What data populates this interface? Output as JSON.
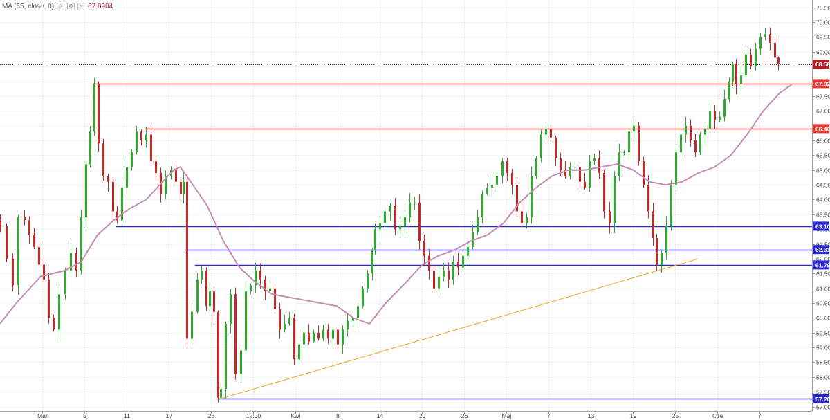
{
  "legend": {
    "study": "MA (55, close, 0)",
    "value": "67.8904"
  },
  "chart_data": {
    "type": "candlestick",
    "price_scale": {
      "ylim": [
        56.85,
        70.75
      ],
      "ticks": [
        "57.00",
        "57.50",
        "58.00",
        "58.50",
        "59.00",
        "59.50",
        "60.00",
        "60.50",
        "61.00",
        "61.50",
        "62.00",
        "62.50",
        "63.00",
        "63.50",
        "64.00",
        "64.50",
        "65.00",
        "65.50",
        "66.00",
        "66.50",
        "67.00",
        "67.50",
        "68.00",
        "68.50",
        "69.00",
        "69.50",
        "70.00",
        "70.50"
      ]
    },
    "time_labels": [
      "Mar",
      "5",
      "11",
      "17",
      "23",
      "12:00",
      "Kwi",
      "8",
      "14",
      "20",
      "26",
      "Maj",
      "7",
      "13",
      "19",
      "25",
      "Cze",
      "7"
    ],
    "current_price": {
      "label": "68.58",
      "value": 68.58,
      "color": "#b71c1c"
    },
    "horizontal_levels": [
      {
        "label": "67.92",
        "value": 67.92,
        "color": "#e53935",
        "x_start": 0.115
      },
      {
        "label": "66.40",
        "value": 66.4,
        "color": "#e53935",
        "x_start": 0.178
      },
      {
        "label": "63.10",
        "value": 63.1,
        "color": "#2a2ad0",
        "x_start": 0.143
      },
      {
        "label": "62.31",
        "value": 62.31,
        "color": "#2a2ad0",
        "x_start": 0.228
      },
      {
        "label": "61.79",
        "value": 61.79,
        "color": "#2a2ad0",
        "x_start": 0.24
      },
      {
        "label": "57.26",
        "value": 57.26,
        "color": "#2a2ad0",
        "x_start": 0.268
      }
    ],
    "trendline": {
      "color": "#f5a030",
      "from": {
        "x": 0.271,
        "y": 57.26
      },
      "to": {
        "x": 0.86,
        "y": 62.0
      }
    },
    "ma_color": "#c48bb3",
    "up_color": "#2eaa2e",
    "down_color": "#c62828",
    "close_path": [
      [
        0.0,
        63.1
      ],
      [
        0.008,
        62.0
      ],
      [
        0.015,
        61.1
      ],
      [
        0.022,
        63.4
      ],
      [
        0.03,
        63.3
      ],
      [
        0.036,
        62.8
      ],
      [
        0.042,
        62.4
      ],
      [
        0.048,
        61.8
      ],
      [
        0.054,
        61.3
      ],
      [
        0.06,
        60.0
      ],
      [
        0.066,
        59.6
      ],
      [
        0.072,
        60.8
      ],
      [
        0.08,
        61.6
      ],
      [
        0.087,
        62.2
      ],
      [
        0.094,
        61.6
      ],
      [
        0.1,
        63.4
      ],
      [
        0.106,
        65.2
      ],
      [
        0.111,
        66.3
      ],
      [
        0.116,
        67.9
      ],
      [
        0.121,
        65.9
      ],
      [
        0.127,
        64.8
      ],
      [
        0.133,
        64.6
      ],
      [
        0.139,
        63.6
      ],
      [
        0.144,
        63.3
      ],
      [
        0.15,
        64.4
      ],
      [
        0.156,
        65.1
      ],
      [
        0.162,
        65.6
      ],
      [
        0.168,
        66.3
      ],
      [
        0.174,
        66.0
      ],
      [
        0.18,
        66.2
      ],
      [
        0.186,
        65.3
      ],
      [
        0.192,
        64.9
      ],
      [
        0.198,
        64.2
      ],
      [
        0.204,
        64.8
      ],
      [
        0.21,
        65.0
      ],
      [
        0.216,
        64.6
      ],
      [
        0.222,
        64.2
      ],
      [
        0.226,
        64.6
      ],
      [
        0.23,
        59.3
      ],
      [
        0.236,
        60.2
      ],
      [
        0.243,
        61.3
      ],
      [
        0.248,
        61.6
      ],
      [
        0.254,
        60.4
      ],
      [
        0.258,
        60.9
      ],
      [
        0.263,
        60.2
      ],
      [
        0.268,
        57.3
      ],
      [
        0.272,
        57.6
      ],
      [
        0.278,
        59.8
      ],
      [
        0.284,
        60.8
      ],
      [
        0.29,
        58.1
      ],
      [
        0.296,
        58.9
      ],
      [
        0.302,
        60.9
      ],
      [
        0.308,
        61.1
      ],
      [
        0.314,
        61.6
      ],
      [
        0.32,
        61.3
      ],
      [
        0.326,
        60.9
      ],
      [
        0.332,
        61.0
      ],
      [
        0.338,
        60.3
      ],
      [
        0.344,
        59.6
      ],
      [
        0.35,
        59.8
      ],
      [
        0.356,
        60.0
      ],
      [
        0.362,
        58.6
      ],
      [
        0.368,
        59.1
      ],
      [
        0.374,
        59.5
      ],
      [
        0.38,
        59.2
      ],
      [
        0.386,
        59.5
      ],
      [
        0.392,
        59.3
      ],
      [
        0.398,
        59.6
      ],
      [
        0.404,
        59.3
      ],
      [
        0.41,
        59.6
      ],
      [
        0.416,
        59.1
      ],
      [
        0.422,
        59.6
      ],
      [
        0.428,
        59.9
      ],
      [
        0.434,
        60.0
      ],
      [
        0.44,
        60.4
      ],
      [
        0.446,
        61.0
      ],
      [
        0.452,
        61.5
      ],
      [
        0.458,
        62.3
      ],
      [
        0.462,
        63.0
      ],
      [
        0.468,
        63.2
      ],
      [
        0.474,
        63.6
      ],
      [
        0.48,
        63.8
      ],
      [
        0.486,
        63.0
      ],
      [
        0.492,
        63.1
      ],
      [
        0.498,
        63.4
      ],
      [
        0.504,
        63.9
      ],
      [
        0.51,
        63.9
      ],
      [
        0.516,
        62.6
      ],
      [
        0.522,
        62.1
      ],
      [
        0.528,
        61.6
      ],
      [
        0.534,
        61.0
      ],
      [
        0.54,
        61.4
      ],
      [
        0.546,
        61.6
      ],
      [
        0.552,
        61.3
      ],
      [
        0.558,
        61.9
      ],
      [
        0.564,
        61.7
      ],
      [
        0.57,
        62.1
      ],
      [
        0.576,
        62.4
      ],
      [
        0.582,
        62.9
      ],
      [
        0.588,
        63.4
      ],
      [
        0.594,
        64.2
      ],
      [
        0.6,
        64.4
      ],
      [
        0.606,
        64.5
      ],
      [
        0.612,
        64.8
      ],
      [
        0.618,
        65.3
      ],
      [
        0.624,
        64.9
      ],
      [
        0.63,
        64.5
      ],
      [
        0.636,
        63.6
      ],
      [
        0.642,
        63.2
      ],
      [
        0.648,
        63.4
      ],
      [
        0.654,
        64.8
      ],
      [
        0.66,
        65.4
      ],
      [
        0.666,
        66.2
      ],
      [
        0.672,
        66.4
      ],
      [
        0.678,
        66.1
      ],
      [
        0.684,
        65.4
      ],
      [
        0.69,
        65.0
      ],
      [
        0.696,
        64.8
      ],
      [
        0.702,
        65.1
      ],
      [
        0.708,
        65.1
      ],
      [
        0.714,
        64.6
      ],
      [
        0.72,
        64.4
      ],
      [
        0.726,
        65.3
      ],
      [
        0.732,
        65.4
      ],
      [
        0.738,
        64.9
      ],
      [
        0.744,
        63.6
      ],
      [
        0.75,
        63.2
      ],
      [
        0.756,
        64.8
      ],
      [
        0.762,
        65.6
      ],
      [
        0.768,
        65.6
      ],
      [
        0.774,
        66.3
      ],
      [
        0.78,
        66.5
      ],
      [
        0.786,
        65.3
      ],
      [
        0.792,
        64.5
      ],
      [
        0.798,
        63.6
      ],
      [
        0.804,
        62.7
      ],
      [
        0.808,
        61.8
      ],
      [
        0.814,
        62.2
      ],
      [
        0.82,
        63.1
      ],
      [
        0.826,
        64.5
      ],
      [
        0.832,
        65.6
      ],
      [
        0.838,
        66.2
      ],
      [
        0.844,
        66.5
      ],
      [
        0.85,
        66.0
      ],
      [
        0.856,
        65.6
      ],
      [
        0.862,
        66.2
      ],
      [
        0.868,
        66.4
      ],
      [
        0.874,
        67.0
      ],
      [
        0.88,
        66.7
      ],
      [
        0.886,
        66.8
      ],
      [
        0.892,
        67.4
      ],
      [
        0.898,
        68.0
      ],
      [
        0.902,
        68.6
      ],
      [
        0.906,
        67.9
      ],
      [
        0.912,
        68.2
      ],
      [
        0.918,
        68.9
      ],
      [
        0.924,
        68.5
      ],
      [
        0.93,
        69.1
      ],
      [
        0.936,
        69.5
      ],
      [
        0.942,
        69.6
      ],
      [
        0.948,
        69.3
      ],
      [
        0.954,
        68.8
      ],
      [
        0.958,
        68.58
      ]
    ],
    "ma_path": [
      [
        0.0,
        59.8
      ],
      [
        0.02,
        60.5
      ],
      [
        0.05,
        61.4
      ],
      [
        0.08,
        61.6
      ],
      [
        0.1,
        61.9
      ],
      [
        0.12,
        62.8
      ],
      [
        0.14,
        63.3
      ],
      [
        0.16,
        63.7
      ],
      [
        0.18,
        64.0
      ],
      [
        0.2,
        64.6
      ],
      [
        0.214,
        65.0
      ],
      [
        0.222,
        65.1
      ],
      [
        0.235,
        64.6
      ],
      [
        0.255,
        63.8
      ],
      [
        0.275,
        62.6
      ],
      [
        0.295,
        61.7
      ],
      [
        0.315,
        61.2
      ],
      [
        0.335,
        60.8
      ],
      [
        0.355,
        60.7
      ],
      [
        0.375,
        60.6
      ],
      [
        0.395,
        60.5
      ],
      [
        0.415,
        60.4
      ],
      [
        0.435,
        60.0
      ],
      [
        0.455,
        59.8
      ],
      [
        0.475,
        60.5
      ],
      [
        0.5,
        61.2
      ],
      [
        0.52,
        61.8
      ],
      [
        0.54,
        62.1
      ],
      [
        0.56,
        62.3
      ],
      [
        0.58,
        62.6
      ],
      [
        0.6,
        62.8
      ],
      [
        0.62,
        63.2
      ],
      [
        0.64,
        63.9
      ],
      [
        0.66,
        64.4
      ],
      [
        0.68,
        64.8
      ],
      [
        0.7,
        65.0
      ],
      [
        0.72,
        65.0
      ],
      [
        0.74,
        65.1
      ],
      [
        0.76,
        65.2
      ],
      [
        0.78,
        65.0
      ],
      [
        0.8,
        64.6
      ],
      [
        0.82,
        64.5
      ],
      [
        0.84,
        64.6
      ],
      [
        0.86,
        64.9
      ],
      [
        0.88,
        65.1
      ],
      [
        0.9,
        65.5
      ],
      [
        0.92,
        66.2
      ],
      [
        0.94,
        67.0
      ],
      [
        0.96,
        67.6
      ],
      [
        0.975,
        67.89
      ]
    ]
  }
}
